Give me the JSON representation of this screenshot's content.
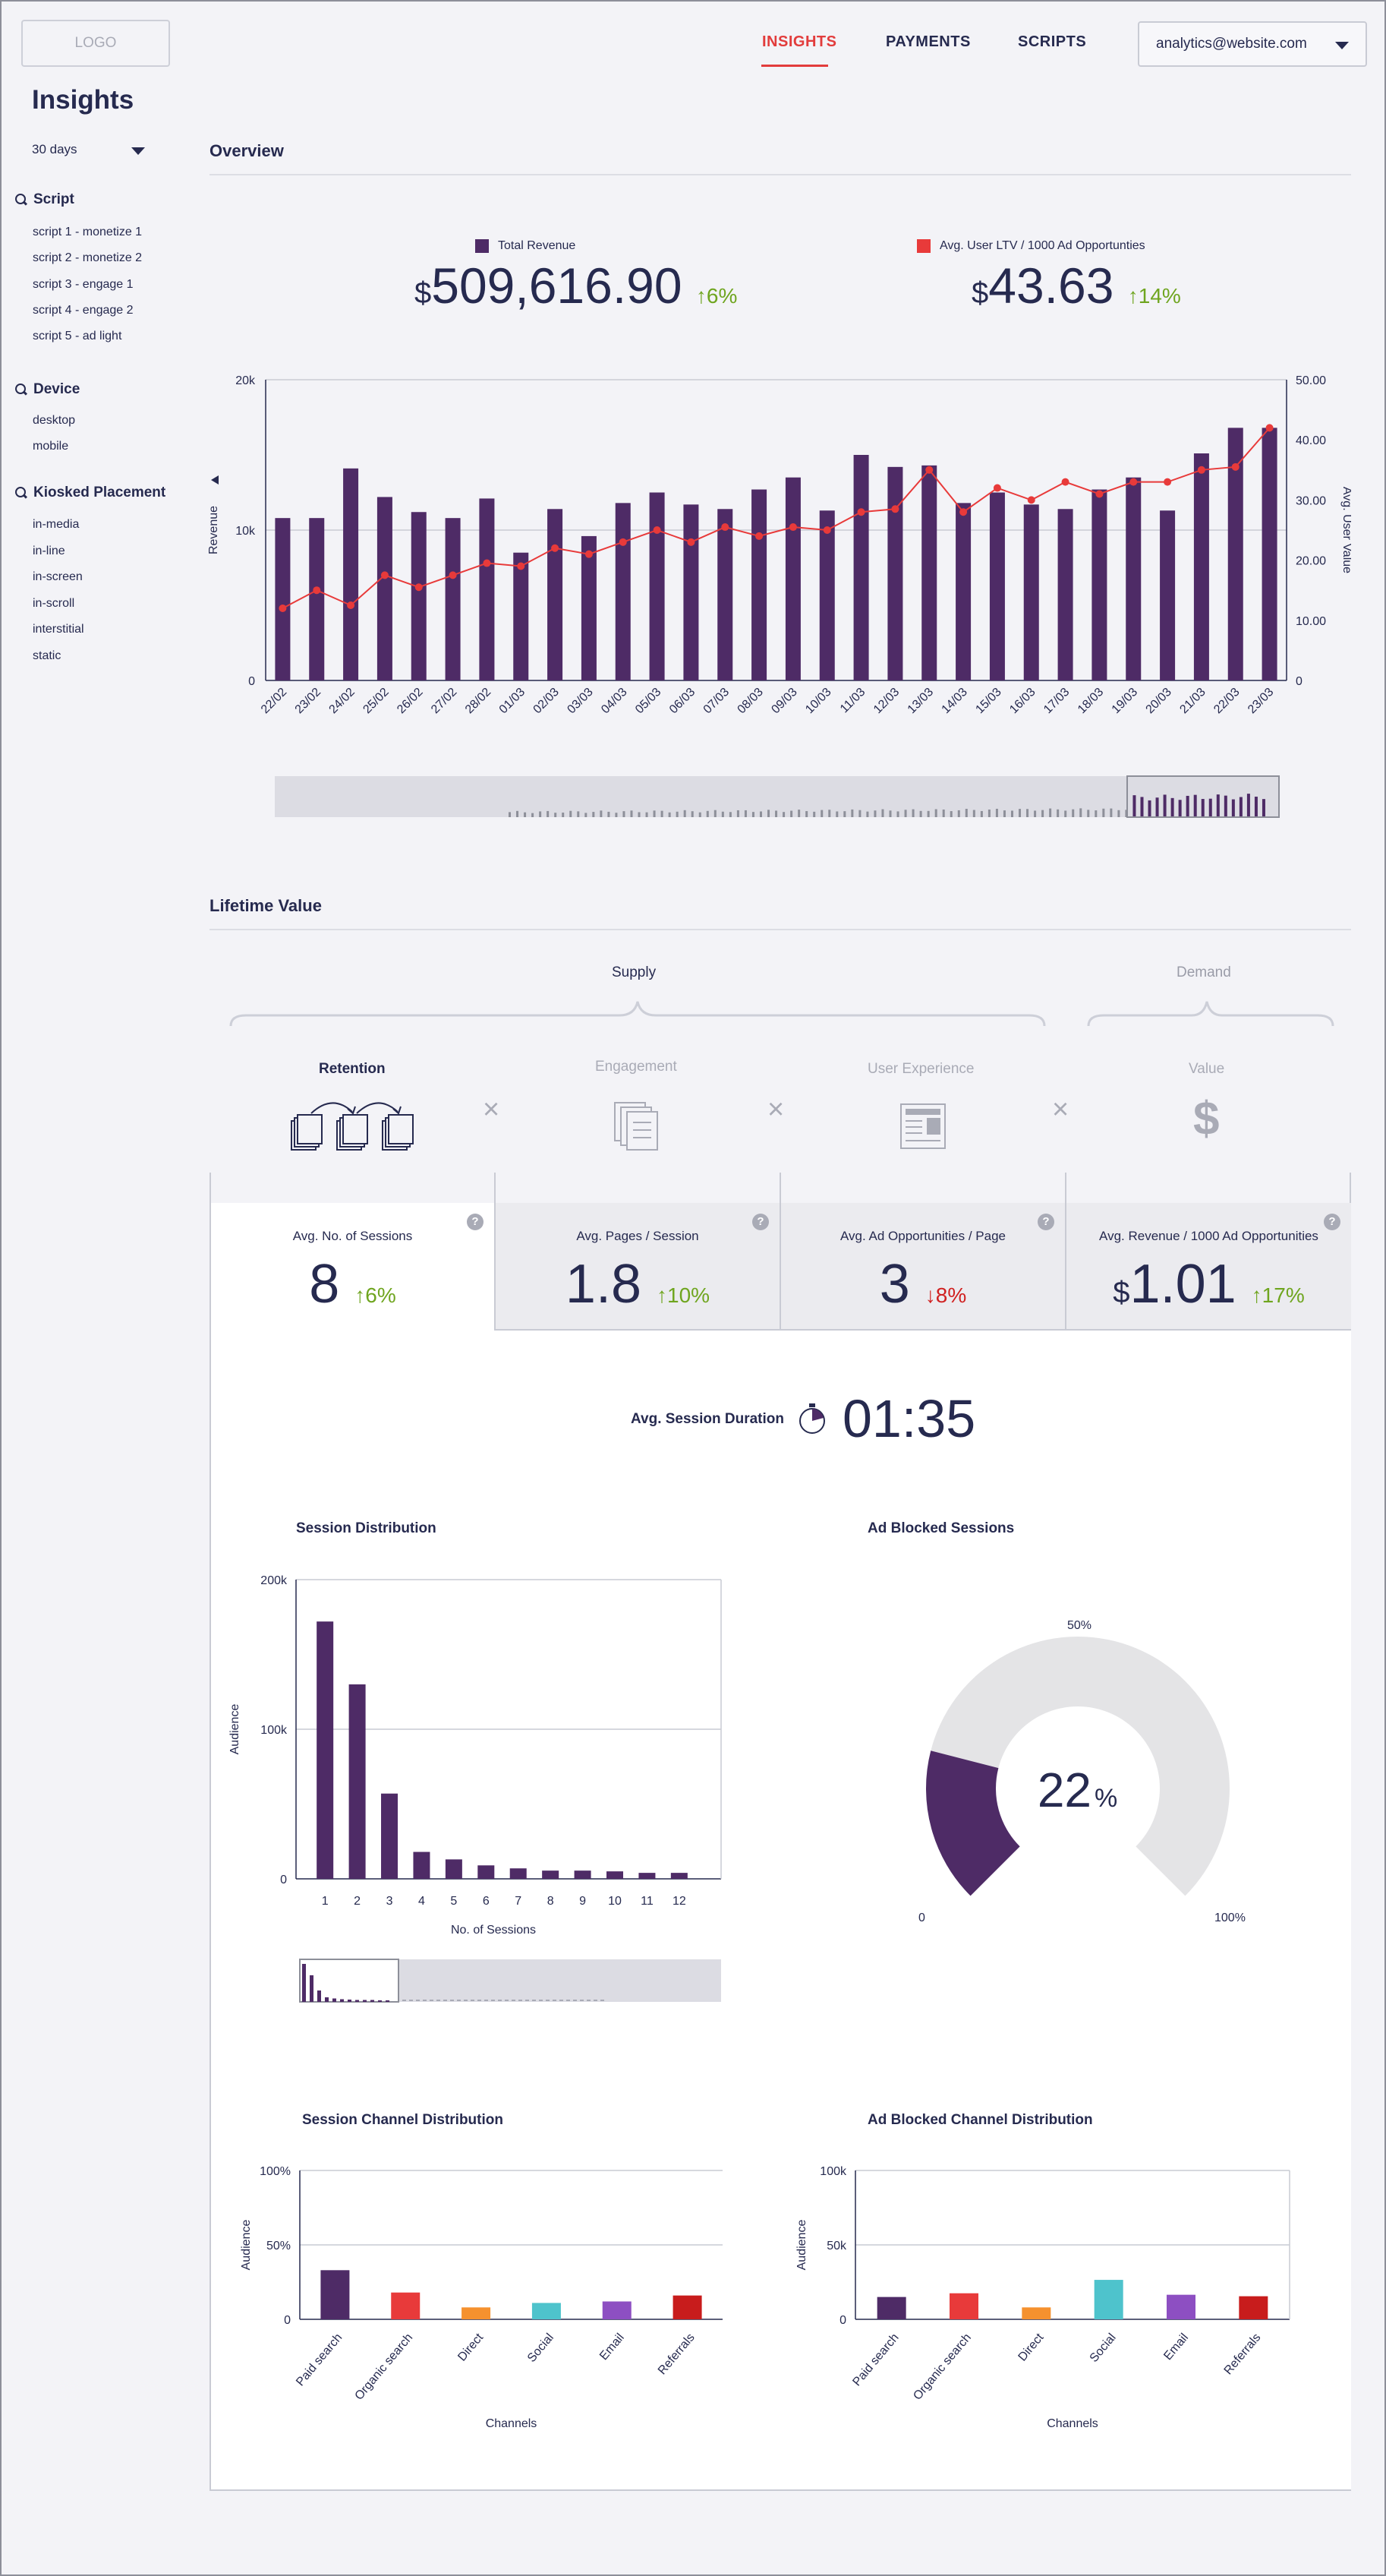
{
  "header": {
    "logo": "LOGO",
    "nav": [
      "INSIGHTS",
      "PAYMENTS",
      "SCRIPTS"
    ],
    "active_nav": "INSIGHTS",
    "account": "analytics@website.com"
  },
  "sidebar": {
    "title": "Insights",
    "range": "30 days",
    "groups": [
      {
        "title": "Script",
        "items": [
          "script 1 - monetize 1",
          "script 2 - monetize 2",
          "script 3 - engage 1",
          "script 4 - engage 2",
          "script 5 - ad light"
        ]
      },
      {
        "title": "Device",
        "items": [
          "desktop",
          "mobile"
        ]
      },
      {
        "title": "Kiosked Placement",
        "items": [
          "in-media",
          "in-line",
          "in-screen",
          "in-scroll",
          "interstitial",
          "static"
        ]
      }
    ]
  },
  "overview": {
    "title": "Overview",
    "kpis": [
      {
        "legend": "Total Revenue",
        "currency": "$",
        "value": "509,616.90",
        "delta": "6%",
        "color": "#4e2b66"
      },
      {
        "legend": "Avg. User LTV / 1000 Ad Opportunties",
        "currency": "$",
        "value": "43.63",
        "delta": "14%",
        "color": "#e83a3a"
      }
    ]
  },
  "lifetime": {
    "title": "Lifetime Value",
    "supply": "Supply",
    "demand": "Demand",
    "factors": [
      "Retention",
      "Engagement",
      "User Experience",
      "Value"
    ],
    "operator": "×",
    "cards": [
      {
        "label": "Avg. No. of Sessions",
        "currency": "",
        "value": "8",
        "delta": "6%",
        "dir": "up"
      },
      {
        "label": "Avg. Pages / Session",
        "currency": "",
        "value": "1.8",
        "delta": "10%",
        "dir": "up"
      },
      {
        "label": "Avg. Ad Opportunities / Page",
        "currency": "",
        "value": "3",
        "delta": "8%",
        "dir": "down"
      },
      {
        "label": "Avg. Revenue / 1000 Ad Opportunities",
        "currency": "$",
        "value": "1.01",
        "delta": "17%",
        "dir": "up"
      }
    ],
    "help": "?",
    "session_duration_label": "Avg. Session Duration",
    "session_duration": "01:35"
  },
  "chart_data": [
    {
      "type": "bar",
      "title": "",
      "categories": [
        "22/02",
        "23/02",
        "24/02",
        "25/02",
        "26/02",
        "27/02",
        "28/02",
        "01/03",
        "02/03",
        "03/03",
        "04/03",
        "05/03",
        "06/03",
        "07/03",
        "08/03",
        "09/03",
        "10/03",
        "11/03",
        "12/03",
        "13/03",
        "14/03",
        "15/03",
        "16/03",
        "17/03",
        "18/03",
        "19/03",
        "20/03",
        "21/03",
        "22/03",
        "23/03"
      ],
      "series": [
        {
          "name": "Total Revenue",
          "type": "bar",
          "axis": "left",
          "values": [
            10800,
            10800,
            14100,
            12200,
            11200,
            10800,
            12100,
            8500,
            11400,
            9600,
            11800,
            12500,
            11700,
            11400,
            12700,
            13500,
            11300,
            15000,
            14200,
            14300,
            11800,
            12500,
            11700,
            11400,
            12700,
            13500,
            11300,
            15100,
            16800,
            16800
          ]
        },
        {
          "name": "Avg. User LTV / 1000 Ad Opportunties",
          "type": "line",
          "axis": "right",
          "values": [
            12,
            15,
            12.5,
            17.5,
            15.5,
            17.5,
            19.5,
            19,
            22,
            21,
            23,
            25,
            23,
            25.5,
            24,
            25.5,
            25,
            28,
            28.5,
            35,
            28,
            32,
            30,
            33,
            31,
            33,
            33,
            35,
            35.5,
            42
          ]
        }
      ],
      "ylabel": "Revenue",
      "y2label": "Avg. User Value",
      "ylim": [
        0,
        20000
      ],
      "yticks": [
        "0",
        "10k",
        "20k"
      ],
      "y2lim": [
        0,
        50
      ],
      "y2ticks": [
        "0",
        "10.00",
        "20.00",
        "30.00",
        "40.00",
        "50.00"
      ],
      "grid": true
    },
    {
      "type": "bar",
      "title": "Session Distribution",
      "categories": [
        "1",
        "2",
        "3",
        "4",
        "5",
        "6",
        "7",
        "8",
        "9",
        "10",
        "11",
        "12"
      ],
      "values": [
        172000,
        130000,
        57000,
        18000,
        13000,
        9000,
        7000,
        5500,
        5500,
        5000,
        4000,
        4000
      ],
      "xlabel": "No. of Sessions",
      "ylabel": "Audience",
      "ylim": [
        0,
        200000
      ],
      "yticks": [
        "0",
        "100k",
        "200k"
      ]
    },
    {
      "type": "pie",
      "title": "Ad Blocked Sessions",
      "value": 22,
      "display": "22",
      "unit": "%",
      "tick_labels": [
        "0",
        "50%",
        "100%"
      ]
    },
    {
      "type": "bar",
      "title": "Session Channel Distribution",
      "categories": [
        "Paid search",
        "Organic search",
        "Direct",
        "Social",
        "Email",
        "Referrals"
      ],
      "values": [
        33,
        18,
        8,
        11,
        12,
        16
      ],
      "colors": [
        "#4e2b66",
        "#e83a3a",
        "#f5912e",
        "#4ec3cc",
        "#8d4fc2",
        "#c81c1c"
      ],
      "xlabel": "Channels",
      "ylabel": "Audience",
      "ylim": [
        0,
        100
      ],
      "yticks": [
        "0",
        "50%",
        "100%"
      ]
    },
    {
      "type": "bar",
      "title": "Ad Blocked Channel Distribution",
      "categories": [
        "Paid search",
        "Organic search",
        "Direct",
        "Social",
        "Email",
        "Referrals"
      ],
      "values": [
        15000,
        17500,
        8000,
        26500,
        16500,
        15500
      ],
      "colors": [
        "#4e2b66",
        "#e83a3a",
        "#f5912e",
        "#4ec3cc",
        "#8d4fc2",
        "#c81c1c"
      ],
      "xlabel": "Channels",
      "ylabel": "Audience",
      "ylim": [
        0,
        100000
      ],
      "yticks": [
        "0",
        "50k",
        "100k"
      ]
    }
  ]
}
